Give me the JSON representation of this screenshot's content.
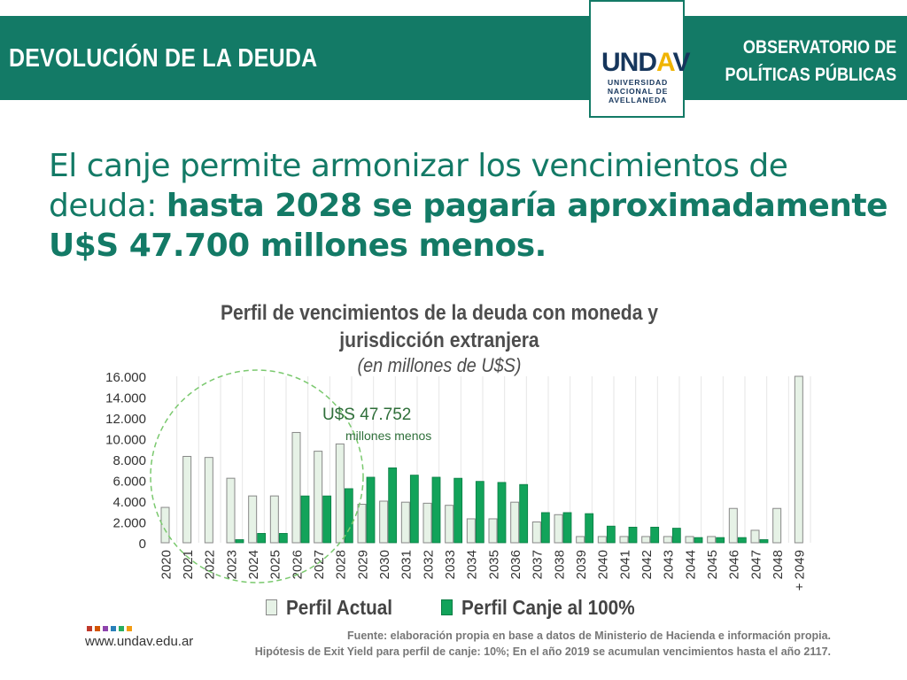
{
  "header": {
    "title": "DEVOLUCIÓN DE LA DEUDA",
    "logo": {
      "mark_a": "UND",
      "mark_b": "A",
      "mark_c": "V",
      "sub1": "UNIVERSIDAD",
      "sub2": "NACIONAL DE",
      "sub3": "AVELLANEDA"
    },
    "right_line1": "OBSERVATORIO DE",
    "right_line2": "POLÍTICAS PÚBLICAS"
  },
  "headline": {
    "regular": "El canje permite armonizar los vencimientos de deuda: ",
    "bold": "hasta 2028 se pagaría aproximadamente U$S 47.700 millones menos."
  },
  "chart_data": {
    "type": "bar",
    "title_line1": "Perfil de vencimientos de la deuda con moneda y",
    "title_line2": "jurisdicción extranjera",
    "subtitle": "(en millones de U$S)",
    "categories": [
      "2020",
      "2021",
      "2022",
      "2023",
      "2024",
      "2025",
      "2026",
      "2027",
      "2028",
      "2029",
      "2030",
      "2031",
      "2032",
      "2033",
      "2034",
      "2035",
      "2036",
      "2037",
      "2038",
      "2039",
      "2040",
      "2041",
      "2042",
      "2043",
      "2044",
      "2045",
      "2046",
      "2047",
      "2048",
      "+ 2049"
    ],
    "y_ticks": [
      "0",
      "2.000",
      "4.000",
      "6.000",
      "8.000",
      "10.000",
      "12.000",
      "14.000",
      "16.000"
    ],
    "ylim": [
      0,
      16000
    ],
    "series": [
      {
        "name": "Perfil Actual",
        "color": "#e6f2e6",
        "stroke": "#888888",
        "values": [
          3400,
          8300,
          8200,
          6200,
          4500,
          4500,
          10600,
          8800,
          9500,
          3700,
          4000,
          3900,
          3800,
          3600,
          2300,
          2300,
          3900,
          2000,
          2700,
          600,
          600,
          600,
          600,
          600,
          600,
          600,
          3300,
          1200,
          3300,
          16000
        ]
      },
      {
        "name": "Perfil Canje al 100%",
        "color": "#12a35a",
        "stroke": "#0b7d44",
        "values": [
          0,
          0,
          0,
          300,
          900,
          900,
          4500,
          4500,
          5200,
          6300,
          7200,
          6500,
          6300,
          6200,
          5900,
          5800,
          5600,
          2900,
          2900,
          2800,
          1600,
          1500,
          1500,
          1400,
          500,
          500,
          500,
          300,
          0,
          0
        ]
      }
    ],
    "annotation_value": "U$S 47.752",
    "annotation_text": "millones menos",
    "legend_position": "bottom"
  },
  "legend": {
    "actual": "Perfil Actual",
    "canje": "Perfil Canje al 100%"
  },
  "footer": {
    "website": "www.undav.edu.ar",
    "source": "Fuente: elaboración propia en base a datos de Ministerio de Hacienda e información propia.",
    "hypothesis": "Hipótesis de Exit Yield para perfil de canje: 10%; En el año 2019 se acumulan vencimientos hasta el año 2117.",
    "dot_colors": [
      "#c0392b",
      "#d35400",
      "#8e44ad",
      "#2980b9",
      "#27ae60",
      "#f39c12"
    ]
  },
  "colors": {
    "brand": "#137a66",
    "logo_navy": "#16365c",
    "logo_yellow": "#f0b400"
  }
}
